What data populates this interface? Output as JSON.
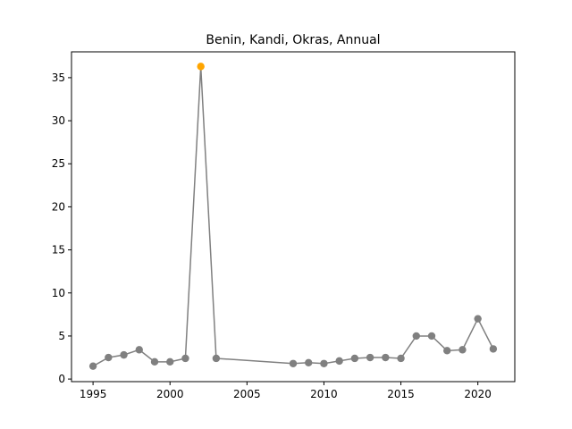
{
  "chart_data": {
    "type": "line",
    "title": "Benin, Kandi, Okras, Annual",
    "xlabel": "",
    "ylabel": "",
    "xlim": [
      1993.6,
      2022.4
    ],
    "ylim": [
      -0.3,
      38.0
    ],
    "xticks": [
      1995,
      2000,
      2005,
      2010,
      2015,
      2020
    ],
    "yticks": [
      0,
      5,
      10,
      15,
      20,
      25,
      30,
      35
    ],
    "grid": false,
    "legend": "none",
    "line_color": "#808080",
    "highlight_color": "#ffa500",
    "series": [
      {
        "x": [
          1995,
          1996,
          1997,
          1998,
          1999,
          2000,
          2001,
          2002,
          2003,
          2008,
          2009,
          2010,
          2011,
          2012,
          2013,
          2014,
          2015,
          2016,
          2017,
          2018,
          2019,
          2020,
          2021
        ],
        "values": [
          1.5,
          2.5,
          2.8,
          3.4,
          2.0,
          2.0,
          2.4,
          36.3,
          2.4,
          1.8,
          1.9,
          1.8,
          2.1,
          2.4,
          2.5,
          2.5,
          2.4,
          5.0,
          5.0,
          3.3,
          3.4,
          7.0,
          3.5
        ],
        "highlight_index": 7
      }
    ]
  }
}
